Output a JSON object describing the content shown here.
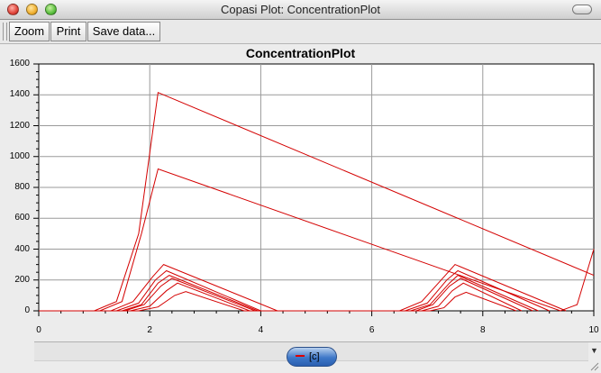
{
  "window": {
    "title": "Copasi Plot: ConcentrationPlot"
  },
  "toolbar": {
    "zoom_label": "Zoom",
    "print_label": "Print",
    "save_label": "Save data..."
  },
  "icons": {
    "close": "close-icon",
    "minimize": "minimize-icon",
    "zoom": "zoom-icon",
    "toolbar_toggle": "toolbar-toggle-icon",
    "scroll_down": "chevron-down-icon",
    "resize": "resize-grip-icon"
  },
  "chart_data": {
    "type": "line",
    "title": "ConcentrationPlot",
    "xlabel": "",
    "ylabel": "",
    "xlim": [
      0,
      10
    ],
    "ylim": [
      0,
      1600
    ],
    "xticks": [
      "0",
      "2",
      "4",
      "6",
      "8",
      "10"
    ],
    "yticks": [
      "0",
      "200",
      "400",
      "600",
      "800",
      "1000",
      "1200",
      "1400",
      "1600"
    ],
    "grid": true,
    "line_color": "#d40000",
    "series": [
      {
        "x": [
          0,
          1.0,
          1.4,
          1.8,
          2.15,
          10
        ],
        "y": [
          0,
          0,
          60,
          500,
          1415,
          230
        ]
      },
      {
        "x": [
          0,
          1.1,
          1.5,
          1.85,
          2.15,
          9.4,
          9.7,
          10
        ],
        "y": [
          0,
          0,
          60,
          500,
          920,
          0,
          40,
          400
        ]
      },
      {
        "x": [
          0,
          1.3,
          1.7,
          2.05,
          2.25,
          4.3,
          6.5,
          6.9,
          7.3,
          7.5,
          9.5
        ],
        "y": [
          0,
          0,
          60,
          220,
          300,
          0,
          0,
          60,
          220,
          300,
          0
        ]
      },
      {
        "x": [
          0,
          1.4,
          1.8,
          2.1,
          2.3,
          4.0,
          6.6,
          7.0,
          7.35,
          7.55,
          9.2
        ],
        "y": [
          0,
          0,
          50,
          200,
          260,
          0,
          0,
          50,
          200,
          260,
          0
        ]
      },
      {
        "x": [
          0,
          1.5,
          1.85,
          2.15,
          2.35,
          3.95,
          6.7,
          7.05,
          7.4,
          7.55,
          9.0
        ],
        "y": [
          0,
          0,
          40,
          180,
          230,
          0,
          0,
          40,
          180,
          230,
          0
        ]
      },
      {
        "x": [
          0,
          1.55,
          1.9,
          2.2,
          2.4,
          3.9,
          6.8,
          7.1,
          7.4,
          7.6,
          8.9
        ],
        "y": [
          0,
          0,
          40,
          160,
          210,
          0,
          0,
          40,
          160,
          210,
          0
        ]
      },
      {
        "x": [
          0,
          1.65,
          2.0,
          2.3,
          2.5,
          3.8,
          6.9,
          7.2,
          7.45,
          7.65,
          8.7
        ],
        "y": [
          0,
          0,
          30,
          130,
          180,
          0,
          0,
          30,
          130,
          180,
          0
        ]
      },
      {
        "x": [
          0,
          1.8,
          2.15,
          2.45,
          2.65,
          3.7,
          7.05,
          7.3,
          7.5,
          7.7,
          8.6
        ],
        "y": [
          0,
          0,
          25,
          100,
          125,
          0,
          0,
          20,
          90,
          120,
          0
        ]
      }
    ]
  },
  "legend": {
    "label": "[c]"
  }
}
